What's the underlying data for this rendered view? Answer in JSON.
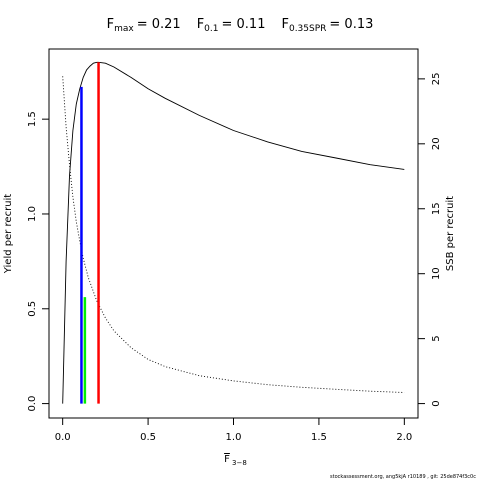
{
  "chart_data": {
    "type": "line",
    "title_parts": [
      {
        "sym": "F",
        "sub": "max",
        "value": "= 0.21"
      },
      {
        "sym": "F",
        "sub": "0.1",
        "value": "= 0.11"
      },
      {
        "sym": "F",
        "sub": "0.35SPR",
        "value": "= 0.13"
      }
    ],
    "xlabel": "F",
    "xlabel_sub": "3−8",
    "ylabel": "Yield per recruit",
    "y2label": "SSB per recruit",
    "xlim": [
      -0.08,
      2.08
    ],
    "ylim": [
      -0.076,
      1.87
    ],
    "y2lim": [
      -1.11,
      27.3
    ],
    "xticks": [
      0,
      0.5,
      1,
      1.5,
      2
    ],
    "xtick_labels": [
      "0.0",
      "0.5",
      "1.0",
      "1.5",
      "2.0"
    ],
    "yticks": [
      0,
      0.5,
      1,
      1.5
    ],
    "ytick_labels": [
      "0.0",
      "0.5",
      "1.0",
      "1.5"
    ],
    "y2ticks": [
      0,
      5,
      10,
      15,
      20,
      25
    ],
    "y2tick_labels": [
      "0",
      "5",
      "10",
      "15",
      "20",
      "25"
    ],
    "series": [
      {
        "role": "yield_per_recruit",
        "axis": "left",
        "style": "solid",
        "color": "#000000",
        "x": [
          0.0,
          0.02,
          0.04,
          0.06,
          0.08,
          0.1,
          0.12,
          0.14,
          0.16,
          0.18,
          0.2,
          0.21,
          0.25,
          0.3,
          0.4,
          0.5,
          0.6,
          0.8,
          1.0,
          1.2,
          1.4,
          1.6,
          1.8,
          2.0
        ],
        "y": [
          0.0,
          0.75,
          1.2,
          1.44,
          1.58,
          1.66,
          1.72,
          1.76,
          1.78,
          1.795,
          1.8,
          1.8,
          1.795,
          1.775,
          1.72,
          1.66,
          1.61,
          1.52,
          1.44,
          1.38,
          1.33,
          1.295,
          1.26,
          1.235
        ]
      },
      {
        "role": "ssb_per_recruit",
        "axis": "right",
        "style": "dotted",
        "color": "#000000",
        "x": [
          0.0,
          0.02,
          0.04,
          0.06,
          0.08,
          0.1,
          0.12,
          0.15,
          0.2,
          0.25,
          0.3,
          0.4,
          0.5,
          0.6,
          0.8,
          1.0,
          1.2,
          1.4,
          1.6,
          1.8,
          2.0
        ],
        "y": [
          25.2,
          21.3,
          18.4,
          15.9,
          14.0,
          12.5,
          11.2,
          9.7,
          7.9,
          6.6,
          5.6,
          4.3,
          3.4,
          2.85,
          2.15,
          1.75,
          1.45,
          1.25,
          1.1,
          0.95,
          0.85
        ]
      }
    ],
    "reference_lines": [
      {
        "role": "F_0.1",
        "x": 0.11,
        "y_top": 1.67,
        "axis": "left",
        "color": "#0000ff"
      },
      {
        "role": "F_0.35SPR",
        "x": 0.13,
        "y_top": 8.2,
        "axis": "right",
        "color": "#00ee00"
      },
      {
        "role": "F_max",
        "x": 0.21,
        "y_top": 1.8,
        "axis": "left",
        "color": "#ff0000"
      }
    ]
  },
  "footer": "stockassessment.org, ang5kjA  r10189 ,  git: 25de874f3c0c"
}
